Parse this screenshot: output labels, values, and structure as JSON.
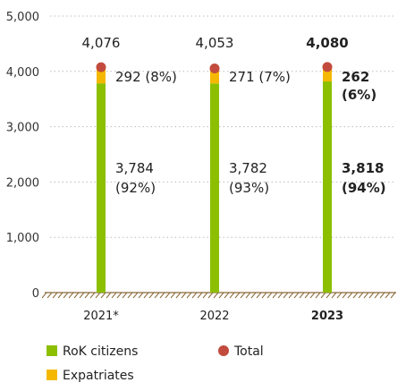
{
  "colors": {
    "rok": "#8cbf00",
    "expat": "#f5b800",
    "total": "#c24b3d",
    "grid": "#bdbdbd",
    "axis_hatch": "#8a6a3a",
    "text": "#222222",
    "tick": "#333333"
  },
  "chart_data": {
    "type": "bar",
    "stacked": true,
    "categories": [
      "2021*",
      "2022",
      "2023"
    ],
    "highlight_category": "2023",
    "series": [
      {
        "name": "RoK citizens",
        "values": [
          3784,
          3782,
          3818
        ],
        "labels": [
          "3,784\n(92%)",
          "3,782\n(93%)",
          "3,818\n(94%)"
        ]
      },
      {
        "name": "Expatriates",
        "values": [
          292,
          271,
          262
        ],
        "labels": [
          "292 (8%)",
          "271 (7%)",
          "262\n(6%)"
        ]
      }
    ],
    "totals": {
      "name": "Total",
      "values": [
        4076,
        4053,
        4080
      ],
      "labels": [
        "4,076",
        "4,053",
        "4,080"
      ]
    },
    "ylim": [
      0,
      5000
    ],
    "yticks": [
      0,
      1000,
      2000,
      3000,
      4000,
      5000
    ],
    "ytick_labels": [
      "0",
      "1,000",
      "2,000",
      "3,000",
      "4,000",
      "5,000"
    ],
    "grid": "horizontal dotted",
    "legend_position": "bottom-left",
    "legend": [
      {
        "label": "RoK citizens",
        "marker": "square",
        "color_key": "rok"
      },
      {
        "label": "Total",
        "marker": "circle",
        "color_key": "total"
      },
      {
        "label": "Expatriates",
        "marker": "square",
        "color_key": "expat"
      }
    ]
  }
}
